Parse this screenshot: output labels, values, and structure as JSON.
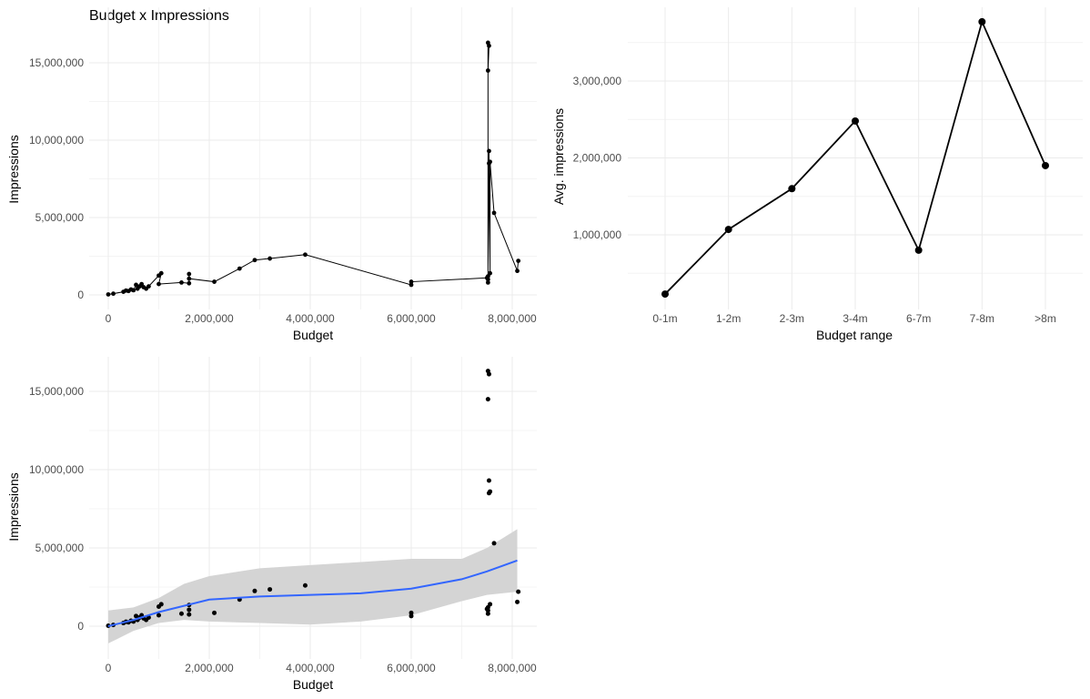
{
  "chart_data": [
    {
      "type": "line",
      "title": "Budget x Impressions",
      "xlabel": "Budget",
      "ylabel": "Impressions",
      "xlim": [
        0,
        8200000
      ],
      "ylim": [
        0,
        16500000
      ],
      "x_ticks": [
        "0",
        "2,000,000",
        "4,000,000",
        "6,000,000",
        "8,000,000"
      ],
      "y_ticks": [
        "0",
        "5,000,000",
        "10,000,000",
        "15,000,000"
      ],
      "grid": true,
      "series": [
        {
          "points": [
            [
              0,
              30000
            ],
            [
              100000,
              80000
            ],
            [
              300000,
              200000
            ],
            [
              350000,
              280000
            ],
            [
              400000,
              250000
            ],
            [
              450000,
              350000
            ],
            [
              500000,
              300000
            ],
            [
              550000,
              650000
            ],
            [
              580000,
              400000
            ],
            [
              620000,
              550000
            ],
            [
              660000,
              700000
            ],
            [
              700000,
              500000
            ],
            [
              750000,
              400000
            ],
            [
              800000,
              550000
            ],
            [
              1000000,
              1250000
            ],
            [
              1050000,
              1400000
            ],
            [
              1000000,
              700000
            ],
            [
              1450000,
              800000
            ],
            [
              1600000,
              750000
            ],
            [
              1600000,
              1350000
            ],
            [
              1600000,
              1050000
            ],
            [
              2100000,
              850000
            ],
            [
              2600000,
              1700000
            ],
            [
              2900000,
              2250000
            ],
            [
              3200000,
              2350000
            ],
            [
              3900000,
              2600000
            ],
            [
              6000000,
              650000
            ],
            [
              6000000,
              850000
            ],
            [
              7500000,
              1100000
            ],
            [
              7520000,
              800000
            ],
            [
              7520000,
              1000000
            ],
            [
              7520000,
              16300000
            ],
            [
              7540000,
              16100000
            ],
            [
              7520000,
              14500000
            ],
            [
              7520000,
              1200000
            ],
            [
              7540000,
              9300000
            ],
            [
              7540000,
              8500000
            ],
            [
              7560000,
              1400000
            ],
            [
              7560000,
              8600000
            ],
            [
              7640000,
              5300000
            ],
            [
              8100000,
              1550000
            ],
            [
              8120000,
              2200000
            ]
          ]
        }
      ]
    },
    {
      "type": "line",
      "title": "",
      "xlabel": "Budget range",
      "ylabel": "Avg. impressions",
      "categories": [
        "0-1m",
        "1-2m",
        "2-3m",
        "3-4m",
        "6-7m",
        "7-8m",
        ">8m"
      ],
      "values": [
        230000,
        1070000,
        1600000,
        2480000,
        800000,
        3770000,
        1900000
      ],
      "ylim": [
        0,
        3900000
      ],
      "y_ticks": [
        "1,000,000",
        "2,000,000",
        "3,000,000"
      ],
      "grid": true
    },
    {
      "type": "scatter",
      "title": "",
      "xlabel": "Budget",
      "ylabel": "Impressions",
      "xlim": [
        0,
        8200000
      ],
      "ylim": [
        -1200000,
        16500000
      ],
      "x_ticks": [
        "0",
        "2,000,000",
        "4,000,000",
        "6,000,000",
        "8,000,000"
      ],
      "y_ticks": [
        "0",
        "5,000,000",
        "10,000,000",
        "15,000,000"
      ],
      "grid": true,
      "trend_color": "#3366ff",
      "band_color": "#d4d4d4",
      "trend": [
        [
          0,
          0
        ],
        [
          500000,
          400000
        ],
        [
          1000000,
          900000
        ],
        [
          2000000,
          1700000
        ],
        [
          3000000,
          1900000
        ],
        [
          4000000,
          2000000
        ],
        [
          5000000,
          2100000
        ],
        [
          6000000,
          2400000
        ],
        [
          7000000,
          3000000
        ],
        [
          7500000,
          3500000
        ],
        [
          8100000,
          4200000
        ]
      ],
      "band_upper": [
        [
          0,
          1000000
        ],
        [
          500000,
          1200000
        ],
        [
          1000000,
          1800000
        ],
        [
          1500000,
          2700000
        ],
        [
          2000000,
          3200000
        ],
        [
          3000000,
          3700000
        ],
        [
          4000000,
          3900000
        ],
        [
          5000000,
          4100000
        ],
        [
          6000000,
          4300000
        ],
        [
          7000000,
          4300000
        ],
        [
          7500000,
          5000000
        ],
        [
          8100000,
          6200000
        ]
      ],
      "band_lower": [
        [
          0,
          -1100000
        ],
        [
          500000,
          -300000
        ],
        [
          1000000,
          200000
        ],
        [
          1500000,
          400000
        ],
        [
          2000000,
          300000
        ],
        [
          3000000,
          200000
        ],
        [
          4000000,
          100000
        ],
        [
          5000000,
          300000
        ],
        [
          6000000,
          700000
        ],
        [
          7000000,
          1600000
        ],
        [
          7500000,
          2000000
        ],
        [
          8100000,
          2200000
        ]
      ]
    }
  ]
}
